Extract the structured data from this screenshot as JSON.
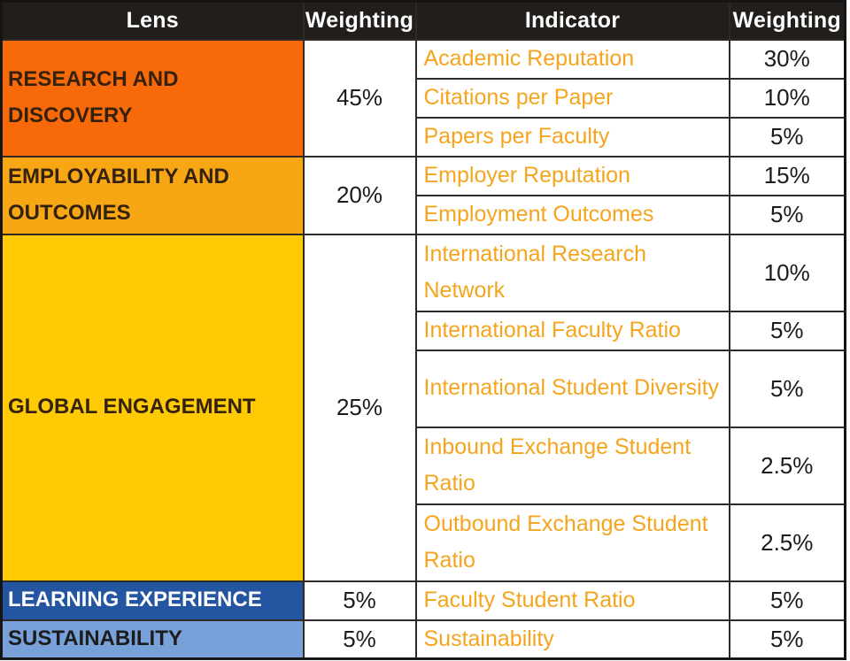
{
  "header": {
    "lens": "Lens",
    "lens_weighting": "Weighting",
    "indicator": "Indicator",
    "indicator_weighting": "Weighting"
  },
  "colors": {
    "header_bg": "#211e1b",
    "header_text": "#ffffff",
    "research_bg": "#f8690a",
    "employability_bg": "#f7a713",
    "global_bg": "#fdca04",
    "learning_bg": "#2355a1",
    "sustainability_bg": "#78a1d9",
    "indicator_text": "#f5a51d",
    "lens_dark_text": "#34210e",
    "grid_border": "#2e2a26"
  },
  "lenses": [
    {
      "name": "RESEARCH AND DISCOVERY",
      "weighting": "45%",
      "indicators": [
        {
          "name": "Academic Reputation",
          "weighting": "30%"
        },
        {
          "name": "Citations per Paper",
          "weighting": "10%"
        },
        {
          "name": "Papers per Faculty",
          "weighting": "5%"
        }
      ]
    },
    {
      "name": "EMPLOYABILITY AND OUTCOMES",
      "weighting": "20%",
      "indicators": [
        {
          "name": "Employer Reputation",
          "weighting": "15%"
        },
        {
          "name": "Employment Outcomes",
          "weighting": "5%"
        }
      ]
    },
    {
      "name": "GLOBAL ENGAGEMENT",
      "weighting": "25%",
      "indicators": [
        {
          "name": "International Research Network",
          "weighting": "10%"
        },
        {
          "name": "International Faculty Ratio",
          "weighting": "5%"
        },
        {
          "name": "International Student Diversity",
          "weighting": "5%"
        },
        {
          "name": "Inbound Exchange Student Ratio",
          "weighting": "2.5%"
        },
        {
          "name": "Outbound Exchange Student Ratio",
          "weighting": "2.5%"
        }
      ]
    },
    {
      "name": "LEARNING EXPERIENCE",
      "weighting": "5%",
      "indicators": [
        {
          "name": "Faculty Student Ratio",
          "weighting": "5%"
        }
      ]
    },
    {
      "name": "SUSTAINABILITY",
      "weighting": "5%",
      "indicators": [
        {
          "name": "Sustainability",
          "weighting": "5%"
        }
      ]
    }
  ],
  "chart_data": {
    "type": "table",
    "columns": [
      "Lens",
      "Weighting",
      "Indicator",
      "Weighting"
    ],
    "rows": [
      [
        "RESEARCH AND DISCOVERY",
        "45%",
        "Academic Reputation",
        "30%"
      ],
      [
        "RESEARCH AND DISCOVERY",
        "45%",
        "Citations per Paper",
        "10%"
      ],
      [
        "RESEARCH AND DISCOVERY",
        "45%",
        "Papers per Faculty",
        "5%"
      ],
      [
        "EMPLOYABILITY AND OUTCOMES",
        "20%",
        "Employer Reputation",
        "15%"
      ],
      [
        "EMPLOYABILITY AND OUTCOMES",
        "20%",
        "Employment Outcomes",
        "5%"
      ],
      [
        "GLOBAL ENGAGEMENT",
        "25%",
        "International Research Network",
        "10%"
      ],
      [
        "GLOBAL ENGAGEMENT",
        "25%",
        "International Faculty Ratio",
        "5%"
      ],
      [
        "GLOBAL ENGAGEMENT",
        "25%",
        "International Student Diversity",
        "5%"
      ],
      [
        "GLOBAL ENGAGEMENT",
        "25%",
        "Inbound Exchange Student Ratio",
        "2.5%"
      ],
      [
        "GLOBAL ENGAGEMENT",
        "25%",
        "Outbound Exchange Student Ratio",
        "2.5%"
      ],
      [
        "LEARNING EXPERIENCE",
        "5%",
        "Faculty Student Ratio",
        "5%"
      ],
      [
        "SUSTAINABILITY",
        "5%",
        "Sustainability",
        "5%"
      ]
    ]
  }
}
